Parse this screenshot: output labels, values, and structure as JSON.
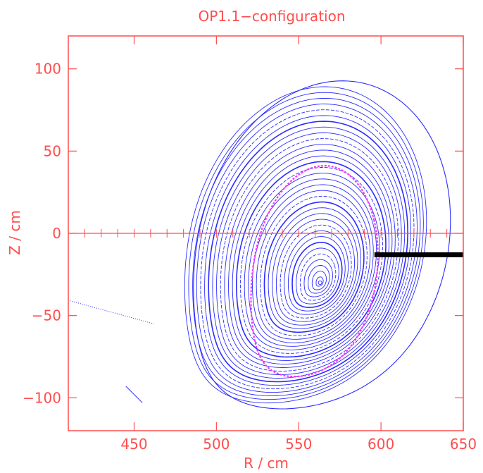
{
  "chart_data": {
    "type": "scatter",
    "title": "OP1.1−configuration",
    "xlabel": "R / cm",
    "ylabel": "Z / cm",
    "xlim": [
      410,
      650
    ],
    "ylim": [
      -120,
      120
    ],
    "x_ticks": [
      450,
      500,
      550,
      600,
      650
    ],
    "y_ticks": [
      100,
      50,
      0,
      -50,
      -100
    ],
    "grid": false,
    "legend": "none",
    "colors": {
      "frame": "#ff4d4d",
      "surfaces": "#2b2bff",
      "highlight_surface": "#ff33ff",
      "limiter": "#000000"
    },
    "magnetic_axis": {
      "R": 563,
      "Z": -30
    },
    "highlight_surface": {
      "R_center": 560,
      "Z_center": -23,
      "R_half_width": 42,
      "Z_half_height": 72
    },
    "last_closed_surface": {
      "R_center": 555,
      "Z_center": -7,
      "R_half_width": 80,
      "Z_half_height": 108
    },
    "outer_boundary": {
      "R_center": 565,
      "Z_center": -7,
      "R_half_width": 85,
      "Z_half_height": 112
    },
    "limiter_segment": {
      "R": [
        596,
        650
      ],
      "Z": [
        -13,
        -13
      ]
    },
    "stray_trace": {
      "R": [
        411,
        462
      ],
      "Z": [
        -41,
        -55
      ]
    },
    "small_fragment": {
      "R": [
        445,
        455
      ],
      "Z": [
        -93,
        -103
      ]
    }
  }
}
